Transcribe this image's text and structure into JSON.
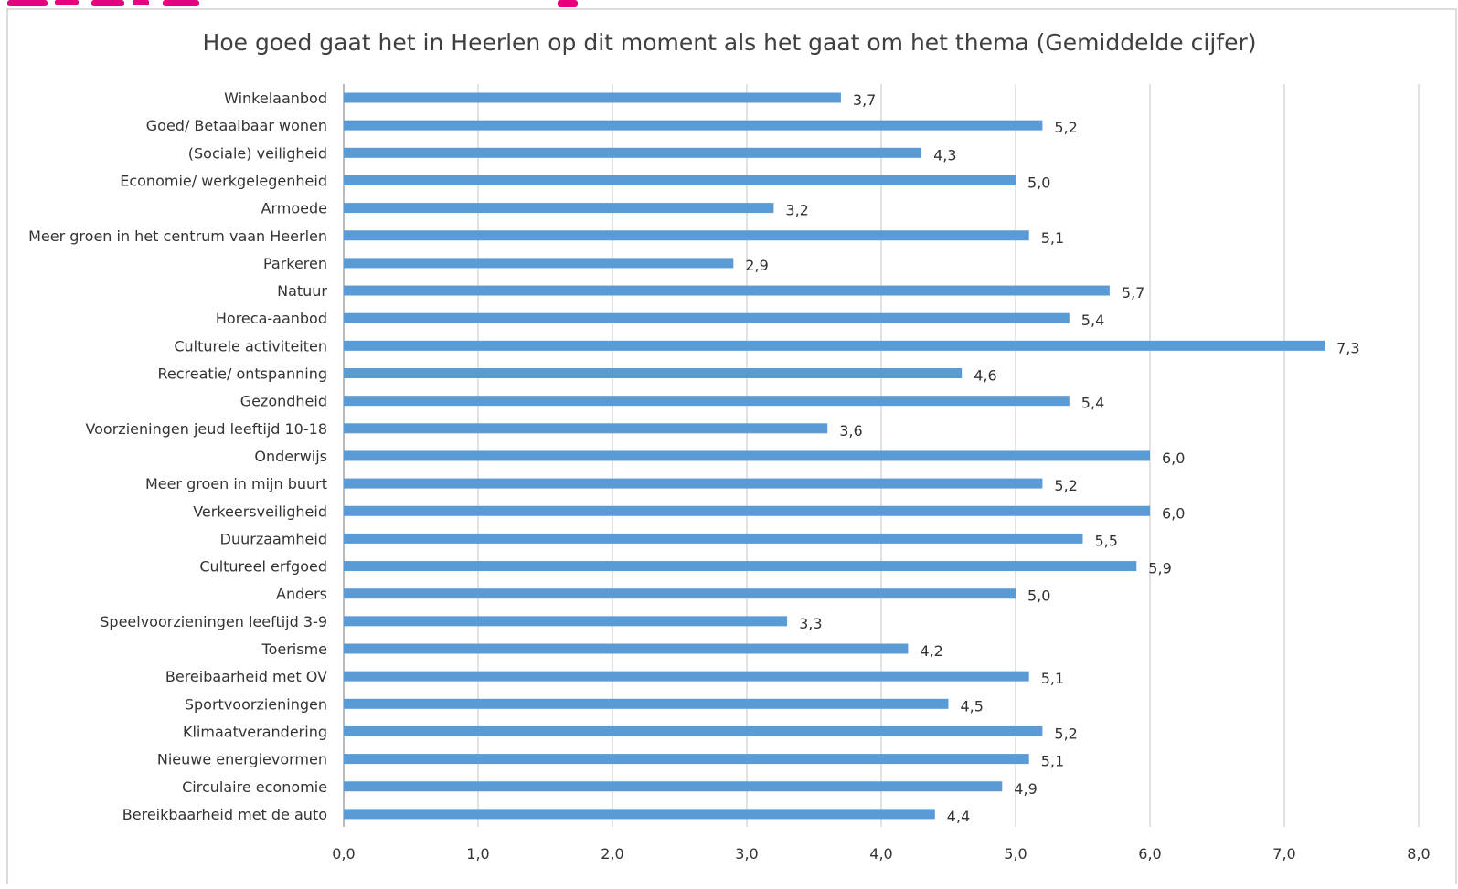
{
  "colors": {
    "bar": "#5b9bd5",
    "gridline": "#cfcfcf",
    "text": "#333333",
    "banner_accent": "#e6007e"
  },
  "chart_data": {
    "type": "bar",
    "orientation": "horizontal",
    "title": "Hoe goed gaat het in Heerlen op dit moment als het gaat om het thema (Gemiddelde cijfer)",
    "xlabel": "",
    "ylabel": "",
    "xlim": [
      0,
      8
    ],
    "x_ticks": [
      0,
      1,
      2,
      3,
      4,
      5,
      6,
      7,
      8
    ],
    "x_tick_labels": [
      "0,0",
      "1,0",
      "2,0",
      "3,0",
      "4,0",
      "5,0",
      "6,0",
      "7,0",
      "8,0"
    ],
    "grid": "vertical",
    "legend": "none",
    "categories": [
      "Winkelaanbod",
      "Goed/ Betaalbaar wonen",
      "(Sociale) veiligheid",
      "Economie/ werkgelegenheid",
      "Armoede",
      "Meer groen in het centrum vaan Heerlen",
      "Parkeren",
      "Natuur",
      "Horeca-aanbod",
      "Culturele activiteiten",
      "Recreatie/ ontspanning",
      "Gezondheid",
      "Voorzieningen jeud leeftijd 10-18",
      "Onderwijs",
      "Meer groen in mijn buurt",
      "Verkeersveiligheid",
      "Duurzaamheid",
      "Cultureel erfgoed",
      "Anders",
      "Speelvoorzieningen leeftijd 3-9",
      "Toerisme",
      "Bereibaarheid met OV",
      "Sportvoorzieningen",
      "Klimaatverandering",
      "Nieuwe energievormen",
      "Circulaire economie",
      "Bereikbaarheid met de auto"
    ],
    "values": [
      3.7,
      5.2,
      4.3,
      5.0,
      3.2,
      5.1,
      2.9,
      5.7,
      5.4,
      7.3,
      4.6,
      5.4,
      3.6,
      6.0,
      5.2,
      6.0,
      5.5,
      5.9,
      5.0,
      3.3,
      4.2,
      5.1,
      4.5,
      5.2,
      5.1,
      4.9,
      4.4
    ],
    "value_labels": [
      "3,7",
      "5,2",
      "4,3",
      "5,0",
      "3,2",
      "5,1",
      "2,9",
      "5,7",
      "5,4",
      "7,3",
      "4,6",
      "5,4",
      "3,6",
      "6,0",
      "5,2",
      "6,0",
      "5,5",
      "5,9",
      "5,0",
      "3,3",
      "4,2",
      "5,1",
      "4,5",
      "5,2",
      "5,1",
      "4,9",
      "4,4"
    ]
  }
}
